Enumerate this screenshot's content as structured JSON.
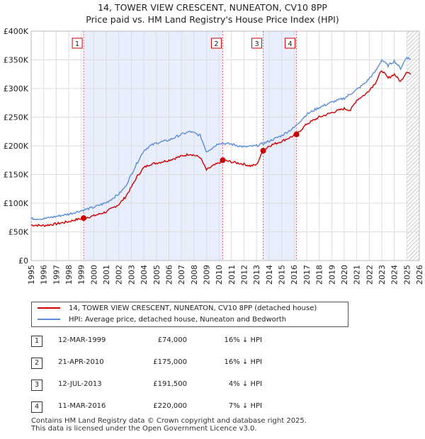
{
  "chart_data": {
    "type": "line",
    "title": "14, TOWER VIEW CRESCENT, NUNEATON, CV10 8PP",
    "subtitle": "Price paid vs. HM Land Registry's House Price Index (HPI)",
    "xlim": [
      1995,
      2026
    ],
    "ylim": [
      0,
      400000
    ],
    "x_ticks": [
      "1995",
      "1996",
      "1997",
      "1998",
      "1999",
      "2000",
      "2001",
      "2002",
      "2003",
      "2004",
      "2005",
      "2006",
      "2007",
      "2008",
      "2009",
      "2010",
      "2011",
      "2012",
      "2013",
      "2014",
      "2015",
      "2016",
      "2017",
      "2018",
      "2019",
      "2020",
      "2021",
      "2022",
      "2023",
      "2024",
      "2025",
      "2026"
    ],
    "y_ticks": [
      {
        "value": 0,
        "label": "£0"
      },
      {
        "value": 50000,
        "label": "£50K"
      },
      {
        "value": 100000,
        "label": "£100K"
      },
      {
        "value": 150000,
        "label": "£150K"
      },
      {
        "value": 200000,
        "label": "£200K"
      },
      {
        "value": 250000,
        "label": "£250K"
      },
      {
        "value": 300000,
        "label": "£300K"
      },
      {
        "value": 350000,
        "label": "£350K"
      },
      {
        "value": 400000,
        "label": "£400K"
      }
    ],
    "forecast_start": 2025.0,
    "grid": true,
    "series": [
      {
        "name": "14, TOWER VIEW CRESCENT, NUNEATON, CV10 8PP (detached house)",
        "color": "#cc0000",
        "x": [
          1995,
          1996,
          1997,
          1998,
          1998.5,
          1999.19,
          2000,
          2001,
          2002,
          2002.5,
          2003,
          2003.5,
          2004,
          2004.5,
          2005,
          2006,
          2007,
          2007.7,
          2008.5,
          2009,
          2009.5,
          2010,
          2010.3,
          2011,
          2012,
          2012.5,
          2013,
          2013.53,
          2014,
          2015,
          2016.19,
          2017,
          2018,
          2019,
          2020,
          2020.5,
          2021,
          2021.7,
          2022.5,
          2023,
          2023.5,
          2024,
          2024.5,
          2025,
          2025.3
        ],
        "y": [
          62000,
          61000,
          64000,
          68000,
          71000,
          74000,
          78000,
          85000,
          98000,
          110000,
          128000,
          148000,
          162000,
          168000,
          170000,
          175000,
          182000,
          186000,
          180000,
          158000,
          165000,
          170000,
          175000,
          172000,
          168000,
          165000,
          167000,
          191500,
          200000,
          208000,
          220000,
          238000,
          250000,
          258000,
          265000,
          262000,
          280000,
          290000,
          310000,
          332000,
          318000,
          325000,
          312000,
          330000,
          325000
        ]
      },
      {
        "name": "HPI: Average price, detached house, Nuneaton and Bedworth",
        "color": "#5b8dd9",
        "x": [
          1995,
          1996,
          1997,
          1998,
          1999,
          2000,
          2001,
          2002,
          2002.5,
          2003,
          2003.5,
          2004,
          2004.5,
          2005,
          2006,
          2007,
          2007.7,
          2008.5,
          2009,
          2009.5,
          2010,
          2011,
          2012,
          2013,
          2014,
          2015,
          2016,
          2017,
          2018,
          2019,
          2020,
          2021,
          2021.7,
          2022.5,
          2023,
          2023.5,
          2024,
          2024.5,
          2025,
          2025.3
        ],
        "y": [
          73000,
          73000,
          77000,
          81000,
          87000,
          93000,
          101000,
          116000,
          128000,
          150000,
          172000,
          192000,
          200000,
          205000,
          210000,
          220000,
          225000,
          218000,
          190000,
          197000,
          205000,
          203000,
          198000,
          200000,
          208000,
          218000,
          232000,
          255000,
          267000,
          276000,
          283000,
          298000,
          310000,
          330000,
          350000,
          340000,
          348000,
          335000,
          355000,
          350000
        ]
      }
    ],
    "transactions": [
      {
        "label": "1",
        "date": "12-MAR-1999",
        "x": 1999.19,
        "price_value": 74000,
        "price": "£74,000",
        "hpi": "16% ↓ HPI"
      },
      {
        "label": "2",
        "date": "21-APR-2010",
        "x": 2010.3,
        "price_value": 175000,
        "price": "£175,000",
        "hpi": "16% ↓ HPI"
      },
      {
        "label": "3",
        "date": "12-JUL-2013",
        "x": 2013.53,
        "price_value": 191500,
        "price": "£191,500",
        "hpi": "4% ↓ HPI"
      },
      {
        "label": "4",
        "date": "11-MAR-2016",
        "x": 2016.19,
        "price_value": 220000,
        "price": "£220,000",
        "hpi": "7% ↓ HPI"
      }
    ],
    "shaded_ranges": [
      [
        1999.19,
        2010.3
      ],
      [
        2013.53,
        2016.19
      ]
    ]
  },
  "legend": {
    "property_label": "14, TOWER VIEW CRESCENT, NUNEATON, CV10 8PP (detached house)",
    "hpi_label": "HPI: Average price, detached house, Nuneaton and Bedworth"
  },
  "footer": {
    "line1": "Contains HM Land Registry data © Crown copyright and database right 2025.",
    "line2": "This data is licensed under the Open Government Licence v3.0."
  }
}
